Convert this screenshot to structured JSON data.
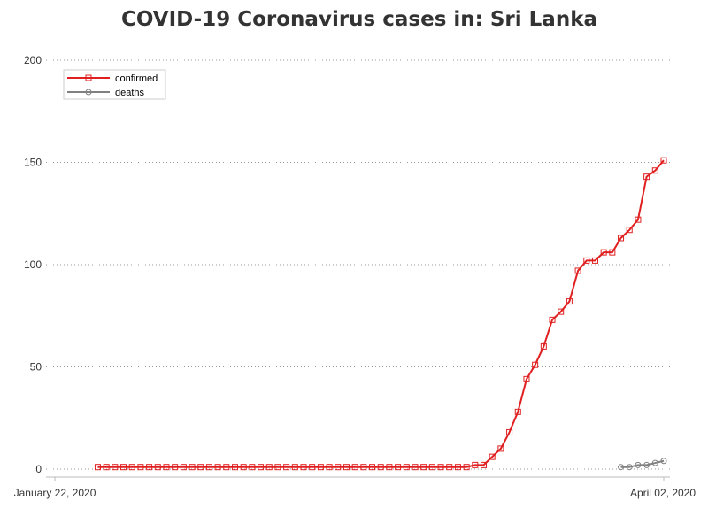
{
  "chart_data": {
    "type": "line",
    "title": "COVID-19 Coronavirus cases in: Sri Lanka",
    "xlabel": "",
    "ylabel": "",
    "x_range": [
      "2020-01-22",
      "2020-04-02"
    ],
    "x_tick_labels": [
      "January 22, 2020",
      "April 02, 2020"
    ],
    "ylim": [
      0,
      200
    ],
    "y_ticks": [
      0,
      50,
      100,
      150,
      200
    ],
    "grid": "horizontal dotted",
    "legend_position": "top-left",
    "series": [
      {
        "name": "confirmed",
        "color": "#e02020",
        "marker": "square",
        "points": [
          [
            "2020-01-27",
            1
          ],
          [
            "2020-01-28",
            1
          ],
          [
            "2020-01-29",
            1
          ],
          [
            "2020-01-30",
            1
          ],
          [
            "2020-01-31",
            1
          ],
          [
            "2020-02-01",
            1
          ],
          [
            "2020-02-02",
            1
          ],
          [
            "2020-02-03",
            1
          ],
          [
            "2020-02-04",
            1
          ],
          [
            "2020-02-05",
            1
          ],
          [
            "2020-02-06",
            1
          ],
          [
            "2020-02-07",
            1
          ],
          [
            "2020-02-08",
            1
          ],
          [
            "2020-02-09",
            1
          ],
          [
            "2020-02-10",
            1
          ],
          [
            "2020-02-11",
            1
          ],
          [
            "2020-02-12",
            1
          ],
          [
            "2020-02-13",
            1
          ],
          [
            "2020-02-14",
            1
          ],
          [
            "2020-02-15",
            1
          ],
          [
            "2020-02-16",
            1
          ],
          [
            "2020-02-17",
            1
          ],
          [
            "2020-02-18",
            1
          ],
          [
            "2020-02-19",
            1
          ],
          [
            "2020-02-20",
            1
          ],
          [
            "2020-02-21",
            1
          ],
          [
            "2020-02-22",
            1
          ],
          [
            "2020-02-23",
            1
          ],
          [
            "2020-02-24",
            1
          ],
          [
            "2020-02-25",
            1
          ],
          [
            "2020-02-26",
            1
          ],
          [
            "2020-02-27",
            1
          ],
          [
            "2020-02-28",
            1
          ],
          [
            "2020-02-29",
            1
          ],
          [
            "2020-03-01",
            1
          ],
          [
            "2020-03-02",
            1
          ],
          [
            "2020-03-03",
            1
          ],
          [
            "2020-03-04",
            1
          ],
          [
            "2020-03-05",
            1
          ],
          [
            "2020-03-06",
            1
          ],
          [
            "2020-03-07",
            1
          ],
          [
            "2020-03-08",
            1
          ],
          [
            "2020-03-09",
            1
          ],
          [
            "2020-03-10",
            1
          ],
          [
            "2020-03-11",
            2
          ],
          [
            "2020-03-12",
            2
          ],
          [
            "2020-03-13",
            6
          ],
          [
            "2020-03-14",
            10
          ],
          [
            "2020-03-15",
            18
          ],
          [
            "2020-03-16",
            28
          ],
          [
            "2020-03-17",
            44
          ],
          [
            "2020-03-18",
            51
          ],
          [
            "2020-03-19",
            60
          ],
          [
            "2020-03-20",
            73
          ],
          [
            "2020-03-21",
            77
          ],
          [
            "2020-03-22",
            82
          ],
          [
            "2020-03-23",
            97
          ],
          [
            "2020-03-24",
            102
          ],
          [
            "2020-03-25",
            102
          ],
          [
            "2020-03-26",
            106
          ],
          [
            "2020-03-27",
            106
          ],
          [
            "2020-03-28",
            113
          ],
          [
            "2020-03-29",
            117
          ],
          [
            "2020-03-30",
            122
          ],
          [
            "2020-03-31",
            143
          ],
          [
            "2020-04-01",
            146
          ],
          [
            "2020-04-02",
            151
          ]
        ]
      },
      {
        "name": "deaths",
        "color": "#808080",
        "marker": "circle",
        "points": [
          [
            "2020-03-28",
            1
          ],
          [
            "2020-03-29",
            1
          ],
          [
            "2020-03-30",
            2
          ],
          [
            "2020-03-31",
            2
          ],
          [
            "2020-04-01",
            3
          ],
          [
            "2020-04-02",
            4
          ]
        ]
      }
    ]
  }
}
